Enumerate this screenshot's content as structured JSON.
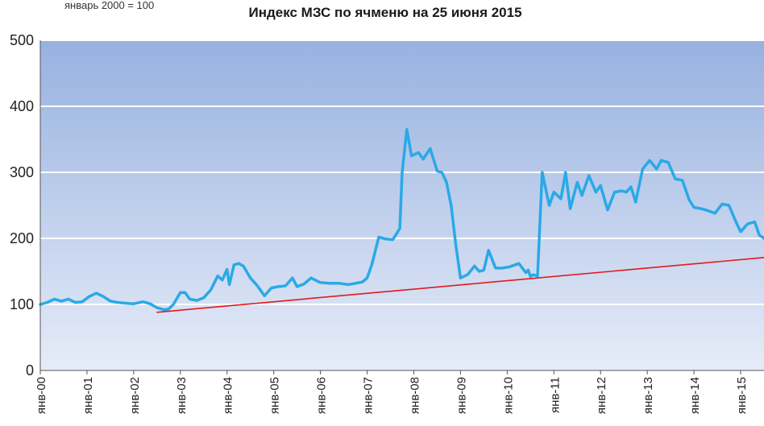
{
  "chart_data": {
    "type": "line",
    "title": "Индекс МЗС по ячменю на 25 июня 2015",
    "subtitle": "январь 2000 = 100",
    "ylim": [
      0,
      500
    ],
    "yticks": [
      "0",
      "100",
      "200",
      "300",
      "400",
      "500"
    ],
    "xlim": [
      2000,
      2015.5
    ],
    "categories": [
      "янв-00",
      "янв-01",
      "янв-02",
      "янв-03",
      "янв-04",
      "янв-05",
      "янв-06",
      "янв-07",
      "янв-08",
      "янв-09",
      "янв-10",
      "янв-11",
      "янв-12",
      "янв-13",
      "янв-14",
      "янв-15"
    ],
    "grid": true,
    "series": [
      {
        "color": "#2aa9e6",
        "x": [
          2000.0,
          2000.15,
          2000.3,
          2000.45,
          2000.6,
          2000.75,
          2000.9,
          2001.05,
          2001.2,
          2001.35,
          2001.5,
          2001.65,
          2001.8,
          2002.0,
          2002.2,
          2002.35,
          2002.5,
          2002.65,
          2002.75,
          2002.85,
          2003.0,
          2003.1,
          2003.2,
          2003.35,
          2003.5,
          2003.65,
          2003.8,
          2003.9,
          2004.0,
          2004.05,
          2004.15,
          2004.25,
          2004.35,
          2004.5,
          2004.65,
          2004.8,
          2004.95,
          2005.1,
          2005.25,
          2005.4,
          2005.5,
          2005.65,
          2005.8,
          2006.0,
          2006.2,
          2006.4,
          2006.6,
          2006.75,
          2006.9,
          2007.0,
          2007.1,
          2007.25,
          2007.4,
          2007.55,
          2007.7,
          2007.75,
          2007.85,
          2007.95,
          2008.1,
          2008.2,
          2008.35,
          2008.5,
          2008.6,
          2008.7,
          2008.8,
          2008.9,
          2009.0,
          2009.15,
          2009.3,
          2009.4,
          2009.5,
          2009.6,
          2009.75,
          2009.9,
          2010.05,
          2010.25,
          2010.4,
          2010.45,
          2010.5,
          2010.55,
          2010.65,
          2010.75,
          2010.9,
          2011.0,
          2011.15,
          2011.25,
          2011.35,
          2011.5,
          2011.6,
          2011.75,
          2011.9,
          2012.0,
          2012.15,
          2012.3,
          2012.45,
          2012.55,
          2012.65,
          2012.75,
          2012.9,
          2013.05,
          2013.2,
          2013.3,
          2013.45,
          2013.6,
          2013.75,
          2013.9,
          2014.0,
          2014.15,
          2014.3,
          2014.45,
          2014.6,
          2014.75,
          2014.9,
          2015.0,
          2015.15,
          2015.3,
          2015.4,
          2015.5
        ],
        "values": [
          100,
          103,
          108,
          105,
          108,
          103,
          104,
          112,
          117,
          112,
          105,
          103,
          102,
          101,
          104,
          101,
          95,
          92,
          93,
          100,
          118,
          118,
          108,
          106,
          110,
          122,
          143,
          137,
          153,
          130,
          160,
          162,
          158,
          140,
          128,
          113,
          125,
          127,
          128,
          140,
          127,
          131,
          140,
          133,
          132,
          132,
          130,
          132,
          134,
          140,
          160,
          202,
          199,
          198,
          215,
          300,
          365,
          325,
          330,
          320,
          336,
          302,
          300,
          285,
          250,
          190,
          140,
          145,
          158,
          150,
          152,
          182,
          155,
          155,
          157,
          162,
          148,
          152,
          142,
          145,
          143,
          300,
          250,
          270,
          260,
          300,
          245,
          285,
          265,
          295,
          270,
          280,
          243,
          270,
          272,
          270,
          278,
          255,
          305,
          318,
          305,
          318,
          315,
          290,
          288,
          258,
          247,
          245,
          242,
          238,
          252,
          250,
          225,
          210,
          222,
          225,
          205,
          200
        ]
      },
      {
        "color": "#e21a1a",
        "x": [
          2002.5,
          2015.5
        ],
        "values": [
          88,
          171
        ]
      }
    ]
  }
}
